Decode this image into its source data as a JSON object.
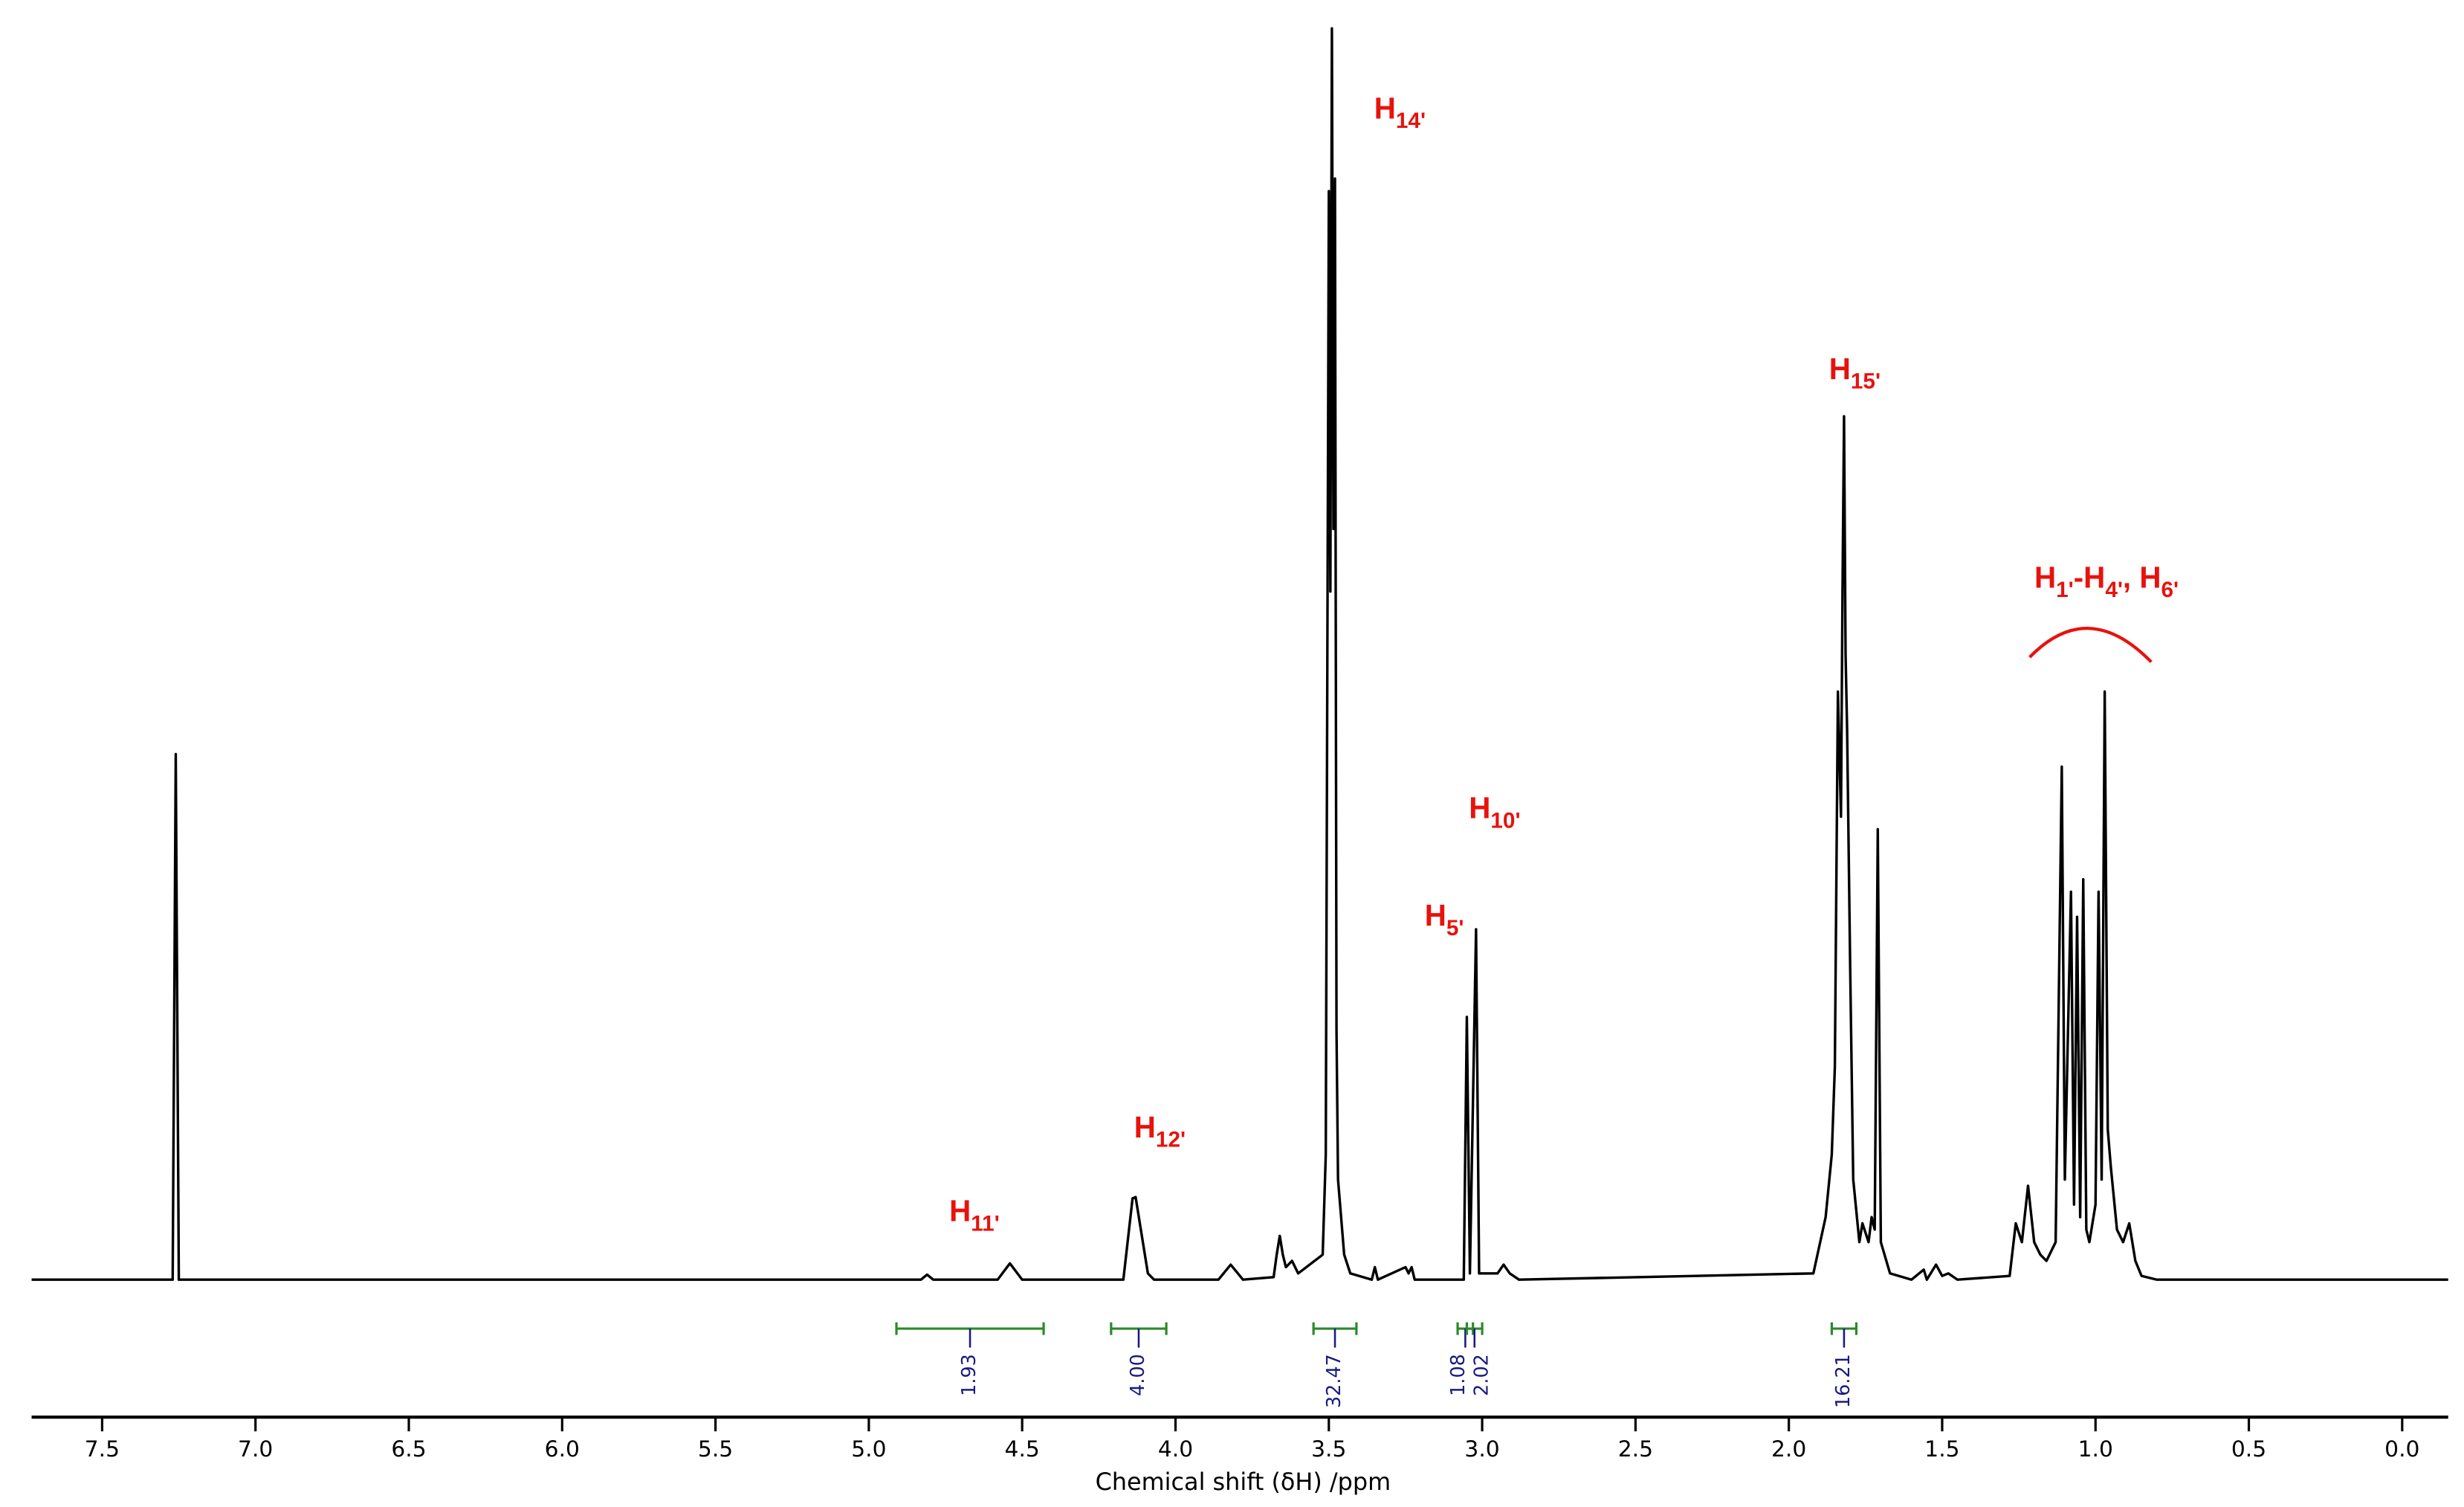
{
  "chart_data": {
    "type": "line",
    "x_label": "Chemical shift (δH) /ppm",
    "xlim": [
      7.73,
      -0.15
    ],
    "ylim": [
      0,
      100
    ],
    "xticks": [
      7.5,
      {
        "value": 7,
        "label": "7.0"
      },
      6.5,
      {
        "value": 6,
        "label": "6.0"
      },
      5.5,
      {
        "value": 5,
        "label": "5.0"
      },
      4.5,
      {
        "value": 4,
        "label": "4.0"
      },
      3.5,
      {
        "value": 3,
        "label": "3.0"
      },
      2.5,
      {
        "value": 2,
        "label": "2.0"
      },
      1.5,
      {
        "value": 1,
        "label": "1.0"
      },
      0.5,
      {
        "value": 0,
        "label": "0.0"
      }
    ],
    "color": "#000000",
    "x": [
      7.73,
      7.28,
      7.27,
      7.26,
      7.25,
      4.83,
      4.81,
      4.79,
      4.58,
      4.54,
      4.5,
      4.17,
      4.14,
      4.13,
      4.09,
      4.07,
      3.86,
      3.82,
      3.78,
      3.68,
      3.67,
      3.66,
      3.65,
      3.64,
      3.62,
      3.6,
      3.52,
      3.51,
      3.5,
      3.495,
      3.49,
      3.485,
      3.48,
      3.475,
      3.47,
      3.45,
      3.43,
      3.36,
      3.35,
      3.34,
      3.25,
      3.24,
      3.23,
      3.22,
      3.06,
      3.05,
      3.04,
      3.02,
      3.01,
      2.95,
      2.93,
      2.91,
      2.88,
      1.92,
      1.88,
      1.86,
      1.85,
      1.84,
      1.83,
      1.825,
      1.82,
      1.815,
      1.81,
      1.8,
      1.79,
      1.77,
      1.76,
      1.74,
      1.73,
      1.72,
      1.71,
      1.7,
      1.67,
      1.6,
      1.56,
      1.55,
      1.52,
      1.5,
      1.48,
      1.45,
      1.28,
      1.26,
      1.24,
      1.22,
      1.2,
      1.18,
      1.16,
      1.13,
      1.11,
      1.1,
      1.08,
      1.07,
      1.06,
      1.05,
      1.04,
      1.03,
      1.02,
      1.0,
      0.99,
      0.98,
      0.97,
      0.96,
      0.95,
      0.93,
      0.91,
      0.89,
      0.87,
      0.85,
      0.8,
      -0.15
    ],
    "values": [
      0,
      0,
      0,
      42,
      0,
      0,
      0.4,
      0,
      0,
      1.3,
      0,
      0,
      6.5,
      6.6,
      0.5,
      0,
      0,
      1.2,
      0,
      0.2,
      2,
      3.5,
      2,
      1,
      1.5,
      0.5,
      2,
      10,
      87,
      55,
      100,
      60,
      88,
      20,
      8,
      2,
      0.5,
      0,
      1,
      0,
      1,
      0.5,
      1,
      0,
      0,
      21,
      0.5,
      28,
      0.5,
      0.5,
      1.2,
      0.5,
      0,
      0.5,
      5,
      10,
      17,
      47,
      37,
      55,
      69,
      50,
      44,
      25,
      8,
      3,
      4.5,
      3,
      5,
      4,
      36,
      3,
      0.5,
      0,
      0.8,
      0,
      1.2,
      0.3,
      0.5,
      0,
      0.3,
      4.5,
      3,
      7.5,
      3,
      2,
      1.5,
      3,
      41,
      8,
      31,
      6,
      29,
      5,
      32,
      4,
      3,
      6,
      31,
      8,
      47,
      12,
      9,
      4,
      3,
      4.5,
      1.5,
      0.3,
      0,
      0
    ],
    "integrals": [
      {
        "from": 4.91,
        "to": 4.43,
        "label": "1.93"
      },
      {
        "from": 4.21,
        "to": 4.03,
        "label": "4.00"
      },
      {
        "from": 3.55,
        "to": 3.41,
        "label": "32.47"
      },
      {
        "from": 3.08,
        "to": 3.03,
        "label": "1.08"
      },
      {
        "from": 3.05,
        "to": 3.0,
        "label": "2.02"
      },
      {
        "from": 1.86,
        "to": 1.78,
        "label": "16.21"
      }
    ],
    "annotations": [
      [
        "H",
        "14'"
      ],
      [
        "H",
        "15'"
      ],
      [
        "H",
        "1'",
        "-H",
        "4'",
        ", H",
        "6'"
      ],
      [
        "H",
        "10'"
      ],
      [
        "H",
        "5'"
      ],
      [
        "H",
        "12'"
      ],
      [
        "H",
        "11'"
      ]
    ]
  }
}
